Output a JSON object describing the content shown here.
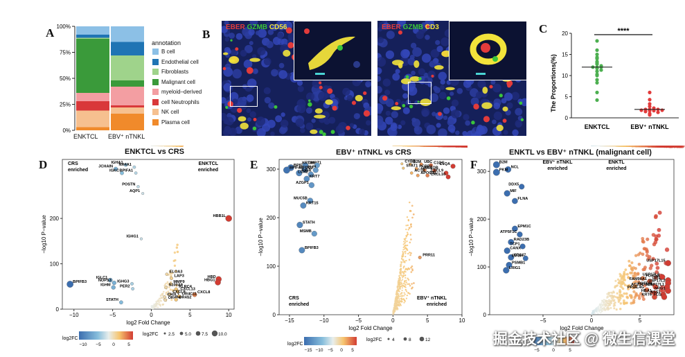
{
  "panels": {
    "A": {
      "label": "A",
      "legend_title": "annotation",
      "legend_items": [
        {
          "name": "B cell",
          "color": "#8cc0e6"
        },
        {
          "name": "Endothelial cell",
          "color": "#1f74b4"
        },
        {
          "name": "Fibroblasts",
          "color": "#9fd38b"
        },
        {
          "name": "Malignant cell",
          "color": "#3a9a3a"
        },
        {
          "name": "myeloid–derived",
          "color": "#f39ea2"
        },
        {
          "name": "cell Neutrophils",
          "color": "#d9383a"
        },
        {
          "name": "NK cell",
          "color": "#f6c08f"
        },
        {
          "name": "Plasma cell",
          "color": "#f08a2b"
        }
      ],
      "y_ticks": [
        "100%",
        "75%",
        "50%",
        "25%",
        "0%"
      ],
      "x_labels": [
        "ENKTCL",
        "EBV⁺ nTNKL"
      ]
    },
    "B": {
      "label": "B",
      "image1_markers": [
        {
          "text": "EBER",
          "color": "#e23b3b"
        },
        {
          "text": "GZMB",
          "color": "#3bc43b"
        },
        {
          "text": "CD56",
          "color": "#f2e33b"
        }
      ],
      "image2_markers": [
        {
          "text": "EBER",
          "color": "#e23b3b"
        },
        {
          "text": "GZMB",
          "color": "#3bc43b"
        },
        {
          "text": "CD3",
          "color": "#f2e33b"
        }
      ]
    },
    "C": {
      "label": "C",
      "significance": "****"
    },
    "D": {
      "label": "D",
      "title": "ENKTCL vs CRS",
      "left_enriched": "CRS\nenriched",
      "right_enriched": "ENKTCL\nenriched",
      "legend_color_title": "log2FC",
      "legend_size_title": "log2FC",
      "color_ticks": [
        "−10",
        "−5",
        "0",
        "5"
      ],
      "size_ticks": [
        "2.5",
        "5.0",
        "7.5",
        "10.0"
      ]
    },
    "E": {
      "label": "E",
      "title": "EBV⁺ nTNKL vs CRS",
      "left_enriched": "CRS\nenriched",
      "right_enriched": "EBV⁺ nTNKL\nenriched",
      "legend_color_title": "log2FC",
      "legend_size_title": "log2FC",
      "color_ticks": [
        "−15",
        "−10",
        "−5",
        "0",
        "5"
      ],
      "size_ticks": [
        "4",
        "8",
        "12"
      ]
    },
    "F": {
      "label": "F",
      "title": "ENKTL vs EBV⁺ nTNKL (malignant cell)",
      "left_enriched": "EBV⁺ nTNKL\nenriched",
      "right_enriched": "ENKTL\nenriched",
      "legend_color_title": "log2FC",
      "color_ticks": [
        "−5",
        "0",
        "5"
      ]
    }
  },
  "watermark": "掘金技术社区 @ 微生信课堂",
  "chart_data": [
    {
      "id": "A",
      "type": "bar",
      "stacked": true,
      "title": "",
      "xlabel": "",
      "ylabel": "",
      "categories": [
        "ENKTCL",
        "EBV⁺ nTNKL"
      ],
      "series": [
        {
          "name": "Plasma cell",
          "values": [
            3,
            16
          ]
        },
        {
          "name": "NK cell",
          "values": [
            16,
            6
          ]
        },
        {
          "name": "cell Neutrophils",
          "values": [
            9,
            2
          ]
        },
        {
          "name": "myeloid–derived",
          "values": [
            8,
            18
          ]
        },
        {
          "name": "Malignant cell",
          "values": [
            52,
            6
          ]
        },
        {
          "name": "Fibroblasts",
          "values": [
            1,
            24
          ]
        },
        {
          "name": "Endothelial cell",
          "values": [
            3,
            13
          ]
        },
        {
          "name": "B cell",
          "values": [
            8,
            15
          ]
        }
      ],
      "ylim": [
        0,
        100
      ]
    },
    {
      "id": "C",
      "type": "scatter",
      "title": "",
      "xlabel": "",
      "ylabel": "The Proportions(%)",
      "categories": [
        "ENKTCL",
        "EBV⁺ nTNKL"
      ],
      "groups": [
        {
          "name": "ENKTCL",
          "color": "#4caf50",
          "values": [
            18.2,
            16,
            15,
            14.3,
            14,
            13.3,
            13,
            12.7,
            12.3,
            12,
            12,
            12,
            11.7,
            11.3,
            11,
            10.3,
            10,
            9,
            8.3,
            6,
            4.2
          ],
          "median": 12
        },
        {
          "name": "EBV⁺ nTNKL",
          "color": "#e23b3b",
          "values": [
            6,
            4.3,
            3.3,
            2.7,
            2.3,
            2,
            2,
            2,
            2,
            1.8,
            1.8,
            1.7,
            1.7,
            1.5,
            1.3,
            1,
            0.7
          ],
          "median": 2
        }
      ],
      "y_ticks": [
        0,
        5,
        10,
        15,
        20
      ],
      "ylim": [
        0,
        20
      ]
    },
    {
      "id": "D",
      "type": "scatter",
      "title": "ENKTCL vs CRS",
      "xlabel": "log2 Fold Change",
      "ylabel": "−log10 P−value",
      "x_ticks": [
        -10,
        -5,
        0,
        5,
        10
      ],
      "y_ticks": [
        0,
        100,
        200
      ],
      "xlim": [
        -11.5,
        10.7
      ],
      "ylim": [
        0,
        330
      ],
      "labeled_points": [
        {
          "gene": "IGHA1",
          "x": -3.3,
          "y": 318
        },
        {
          "gene": "NR4A1",
          "x": -2.2,
          "y": 313
        },
        {
          "gene": "JCHAIN",
          "x": -4.6,
          "y": 309
        },
        {
          "gene": "IGKC",
          "x": -3.8,
          "y": 300
        },
        {
          "gene": "BPIFA1",
          "x": -2.0,
          "y": 300
        },
        {
          "gene": "POSTN",
          "x": -1.7,
          "y": 270
        },
        {
          "gene": "AQP1",
          "x": -1.1,
          "y": 255
        },
        {
          "gene": "HBB1L",
          "x": 10.0,
          "y": 200
        },
        {
          "gene": "IGHG1",
          "x": -1.3,
          "y": 155
        },
        {
          "gene": "ELOA3",
          "x": 2.0,
          "y": 77
        },
        {
          "gene": "LAP3",
          "x": 2.6,
          "y": 68
        },
        {
          "gene": "HBD",
          "x": 8.7,
          "y": 66
        },
        {
          "gene": "HBG1",
          "x": 8.6,
          "y": 59
        },
        {
          "gene": "MMP9",
          "x": 2.5,
          "y": 55
        },
        {
          "gene": "BPIFB3",
          "x": -10.5,
          "y": 55
        },
        {
          "gene": "IGLC1",
          "x": -5.3,
          "y": 64
        },
        {
          "gene": "NOPS3",
          "x": -4.8,
          "y": 58
        },
        {
          "gene": "IGHG3",
          "x": -2.5,
          "y": 56
        },
        {
          "gene": "S100A9",
          "x": 1.9,
          "y": 48
        },
        {
          "gene": "KLRC4",
          "x": 3.2,
          "y": 44
        },
        {
          "gene": "IGHM",
          "x": -4.9,
          "y": 48
        },
        {
          "gene": "PER2",
          "x": -2.4,
          "y": 45
        },
        {
          "gene": "CXCL13",
          "x": 3.4,
          "y": 39
        },
        {
          "gene": "CXCL9",
          "x": 2.4,
          "y": 33
        },
        {
          "gene": "CXCL8",
          "x": 5.6,
          "y": 32
        },
        {
          "gene": "CH3L1",
          "x": 1.7,
          "y": 27
        },
        {
          "gene": "OR4C11",
          "x": 3.6,
          "y": 28
        },
        {
          "gene": "OR4P4",
          "x": 1.8,
          "y": 20
        },
        {
          "gene": "OR4S2",
          "x": 3.2,
          "y": 21
        },
        {
          "gene": "STATH",
          "x": -3.9,
          "y": 15
        }
      ]
    },
    {
      "id": "E",
      "type": "scatter",
      "title": "EBV⁺ nTNKL vs CRS",
      "xlabel": "log2 Fold Change",
      "ylabel": "−log10 P−value",
      "x_ticks": [
        -15,
        -10,
        -5,
        0,
        5,
        10
      ],
      "y_ticks": [
        0,
        100,
        200,
        300
      ],
      "xlim": [
        -16.5,
        10
      ],
      "ylim": [
        0,
        320
      ],
      "labeled_points": [
        {
          "gene": "BPIFB1",
          "x": -14.8,
          "y": 303
        },
        {
          "gene": "DMBT1",
          "x": -12.7,
          "y": 308
        },
        {
          "gene": "KRT19",
          "x": -11,
          "y": 308
        },
        {
          "gene": "BPIFA1",
          "x": -15.4,
          "y": 298
        },
        {
          "gene": "SLPI",
          "x": -12.8,
          "y": 299
        },
        {
          "gene": "WFDC2",
          "x": -11.2,
          "y": 298
        },
        {
          "gene": "PIGR",
          "x": -13.6,
          "y": 292
        },
        {
          "gene": "LCN2",
          "x": -11.9,
          "y": 289
        },
        {
          "gene": "KRT7",
          "x": -12.5,
          "y": 280
        },
        {
          "gene": "AZGP1",
          "x": -11.8,
          "y": 267
        },
        {
          "gene": "MUC5B",
          "x": -12,
          "y": 235
        },
        {
          "gene": "KRT15",
          "x": -13,
          "y": 225
        },
        {
          "gene": "STATH",
          "x": -13.5,
          "y": 185
        },
        {
          "gene": "MSMB",
          "x": -11.4,
          "y": 167
        },
        {
          "gene": "BPIFB3",
          "x": -13.2,
          "y": 133
        },
        {
          "gene": "CYBB",
          "x": 1.3,
          "y": 311
        },
        {
          "gene": "B2M",
          "x": 2.5,
          "y": 310
        },
        {
          "gene": "UBC",
          "x": 4.1,
          "y": 310
        },
        {
          "gene": "C1QC",
          "x": 5.5,
          "y": 308
        },
        {
          "gene": "C1QA",
          "x": 8.7,
          "y": 306
        },
        {
          "gene": "STAT1",
          "x": 1.5,
          "y": 302
        },
        {
          "gene": "PCBP1",
          "x": 3.4,
          "y": 301
        },
        {
          "gene": "C1QB",
          "x": 4.6,
          "y": 298
        },
        {
          "gene": "GBP4",
          "x": 6.0,
          "y": 297
        },
        {
          "gene": "ACTB",
          "x": 2.7,
          "y": 292
        },
        {
          "gene": "APOC1",
          "x": 3.6,
          "y": 287
        },
        {
          "gene": "FTL",
          "x": 5.0,
          "y": 287
        },
        {
          "gene": "CXCL9",
          "x": 7.7,
          "y": 292
        },
        {
          "gene": "CXCL10",
          "x": 8.0,
          "y": 284
        },
        {
          "gene": "PRR11",
          "x": 3.9,
          "y": 118
        }
      ]
    },
    {
      "id": "F",
      "type": "scatter",
      "title": "ENKTL vs EBV⁺ nTNKL (malignant cell)",
      "xlabel": "log2 Fold Change",
      "ylabel": "−log10 P−value",
      "x_ticks": [
        -5,
        0,
        5
      ],
      "y_ticks": [
        0,
        100,
        200,
        300
      ],
      "xlim": [
        -10.5,
        8.5
      ],
      "ylim": [
        0,
        325
      ],
      "labeled_points": [
        {
          "gene": "B2M",
          "x": -9.8,
          "y": 314
        },
        {
          "gene": "NCL",
          "x": -8.6,
          "y": 304
        },
        {
          "gene": "PKM",
          "x": -9.8,
          "y": 298
        },
        {
          "gene": "DDX5",
          "x": -7.2,
          "y": 268
        },
        {
          "gene": "MIF",
          "x": -8.7,
          "y": 254
        },
        {
          "gene": "FLNA",
          "x": -7.9,
          "y": 238
        },
        {
          "gene": "EPM1C",
          "x": -7.9,
          "y": 180
        },
        {
          "gene": "ATP5F1C",
          "x": -7.4,
          "y": 168
        },
        {
          "gene": "RAD23B",
          "x": -8.3,
          "y": 152
        },
        {
          "gene": "TCP1",
          "x": -7.1,
          "y": 143
        },
        {
          "gene": "CANX",
          "x": -8.7,
          "y": 134
        },
        {
          "gene": "CD247",
          "x": -8.3,
          "y": 120
        },
        {
          "gene": "EIF3H",
          "x": -6.8,
          "y": 118
        },
        {
          "gene": "PSMB1",
          "x": -8.5,
          "y": 104
        },
        {
          "gene": "LRIG1",
          "x": -8.8,
          "y": 93
        },
        {
          "gene": "USP17L15",
          "x": 7.9,
          "y": 108
        },
        {
          "gene": "FOXD4L5",
          "x": 5.3,
          "y": 76
        },
        {
          "gene": "OR4K2",
          "x": 7.9,
          "y": 72
        },
        {
          "gene": "USP17L3",
          "x": 7.3,
          "y": 79
        },
        {
          "gene": "FAM90A1",
          "x": 6.0,
          "y": 70
        },
        {
          "gene": "USP17L2",
          "x": 7.9,
          "y": 66
        },
        {
          "gene": "POTEM",
          "x": 4.5,
          "y": 60
        },
        {
          "gene": "AC234782.4",
          "x": 6.6,
          "y": 58
        },
        {
          "gene": "USP17L1",
          "x": 7.8,
          "y": 58
        },
        {
          "gene": "PPIAL4G",
          "x": 5.7,
          "y": 52
        },
        {
          "gene": "NRG1",
          "x": 7.9,
          "y": 50
        },
        {
          "gene": "HBA1",
          "x": 6.5,
          "y": 45
        },
        {
          "gene": "ASS1",
          "x": 7.4,
          "y": 42
        },
        {
          "gene": "KRT6",
          "x": 6.5,
          "y": 37
        },
        {
          "gene": "FLG",
          "x": 7.5,
          "y": 37
        }
      ]
    }
  ]
}
